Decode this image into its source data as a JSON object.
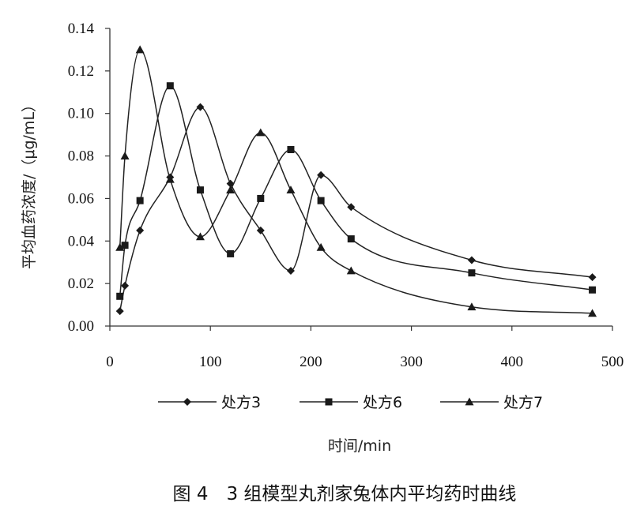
{
  "chart_data": {
    "type": "line",
    "caption": "图 4　3 组模型丸剂家兔体内平均药时曲线",
    "xlabel": "时间/min",
    "ylabel": "平均血药浓度/（μg/mL）",
    "xlim": [
      0,
      500
    ],
    "ylim": [
      0,
      0.14
    ],
    "x_ticks": [
      "0",
      "100",
      "200",
      "300",
      "400",
      "500"
    ],
    "y_ticks": [
      "0.00",
      "0.02",
      "0.04",
      "0.06",
      "0.08",
      "0.10",
      "0.12",
      "0.14"
    ],
    "grid": false,
    "legend_position": "bottom",
    "series": [
      {
        "name": "处方3",
        "marker": "diamond",
        "x": [
          10,
          15,
          30,
          60,
          90,
          120,
          150,
          180,
          210,
          240,
          360,
          480
        ],
        "y": [
          0.007,
          0.019,
          0.045,
          0.07,
          0.103,
          0.067,
          0.045,
          0.026,
          0.071,
          0.056,
          0.031,
          0.023
        ]
      },
      {
        "name": "处方6",
        "marker": "square",
        "x": [
          10,
          15,
          30,
          60,
          90,
          120,
          150,
          180,
          210,
          240,
          360,
          480
        ],
        "y": [
          0.014,
          0.038,
          0.059,
          0.113,
          0.064,
          0.034,
          0.06,
          0.083,
          0.059,
          0.041,
          0.025,
          0.017
        ]
      },
      {
        "name": "处方7",
        "marker": "triangle",
        "x": [
          10,
          15,
          30,
          60,
          90,
          120,
          150,
          180,
          210,
          240,
          360,
          480
        ],
        "y": [
          0.037,
          0.08,
          0.13,
          0.069,
          0.042,
          0.064,
          0.091,
          0.064,
          0.037,
          0.026,
          0.009,
          0.006
        ]
      }
    ]
  }
}
